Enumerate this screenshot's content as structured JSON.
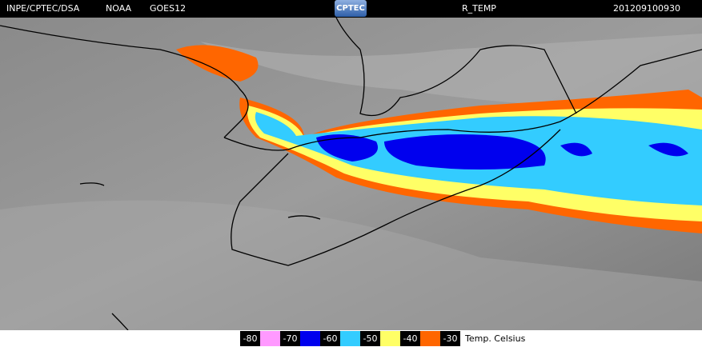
{
  "header": {
    "source": "INPE/CPTEC/DSA",
    "agency": "NOAA",
    "satellite": "GOES12",
    "logo": "CPTEC",
    "product": "R_TEMP",
    "timestamp": "201209100930"
  },
  "legend": {
    "labels": [
      -80,
      -70,
      -60,
      -50,
      -40,
      -30
    ],
    "colors": [
      "#ff99ff",
      "#0000ee",
      "#33ccff",
      "#ffff66",
      "#ff6600"
    ],
    "unit": "Temp. Celsius"
  }
}
